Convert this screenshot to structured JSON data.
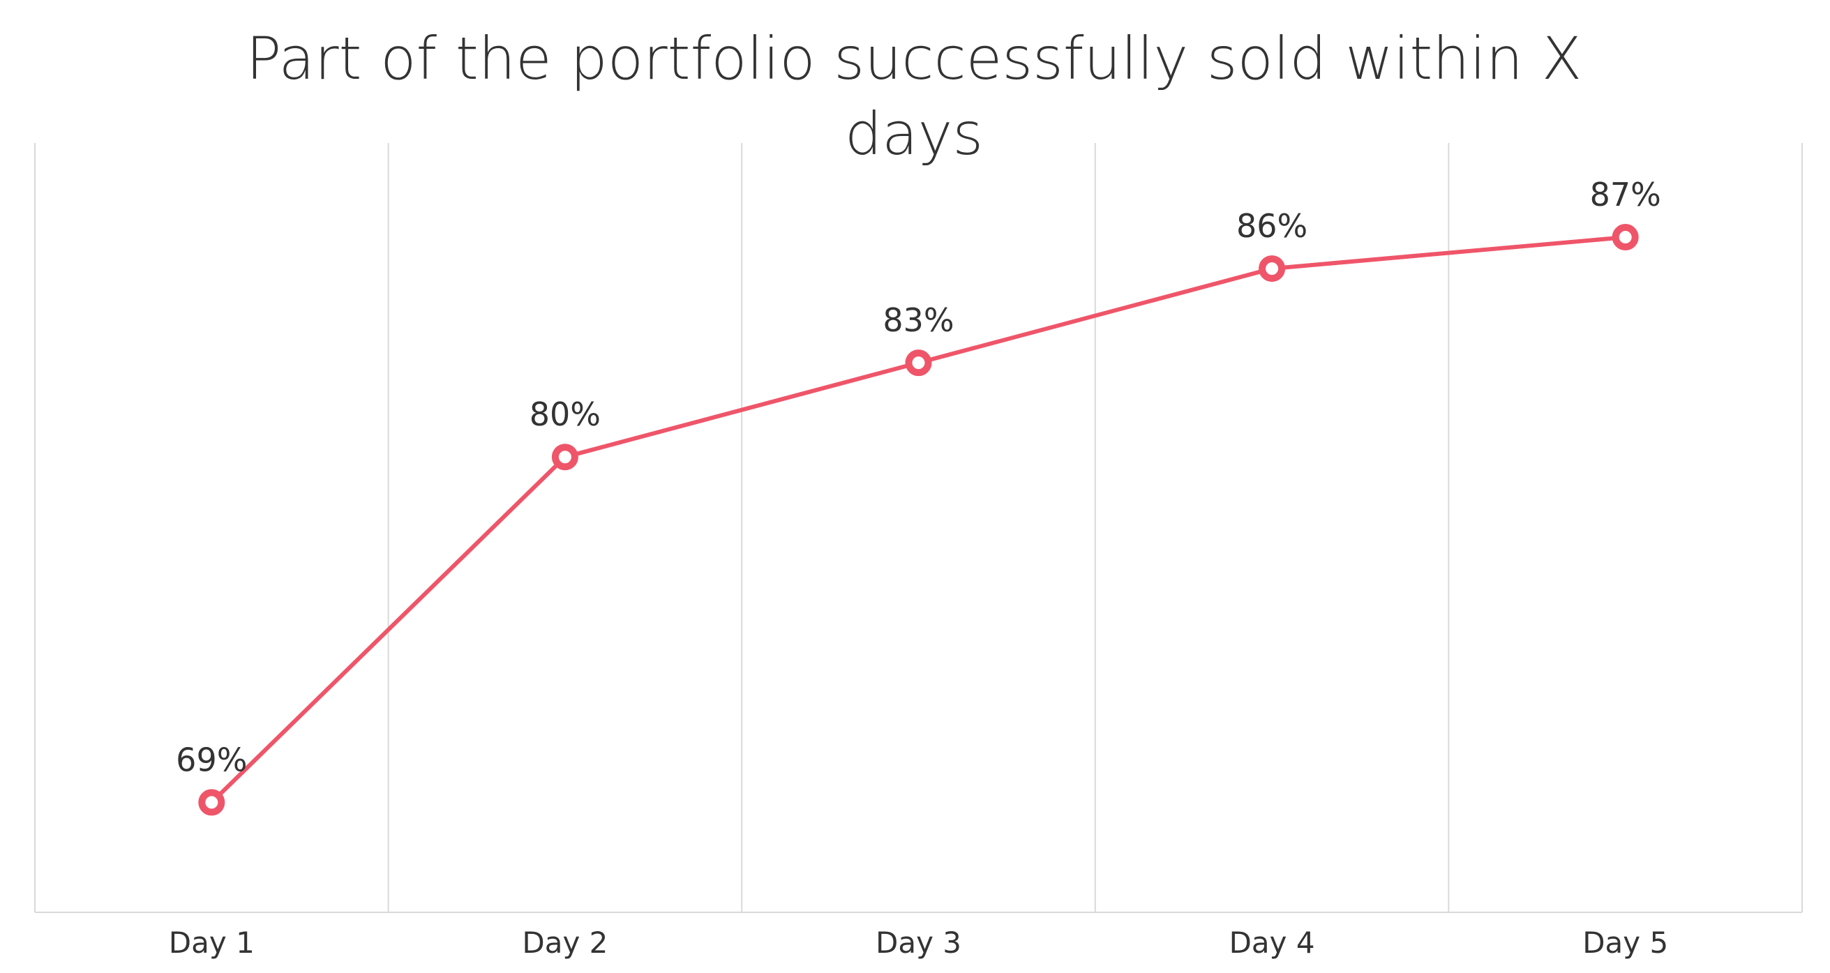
{
  "chart_data": {
    "type": "line",
    "title": "Part of the portfolio successfully sold within X days",
    "categories": [
      "Day 1",
      "Day 2",
      "Day 3",
      "Day 4",
      "Day 5"
    ],
    "series": [
      {
        "color": "#ef5569",
        "values": [
          69,
          80,
          83,
          86,
          87
        ],
        "value_labels": [
          "69%",
          "80%",
          "83%",
          "86%",
          "87%"
        ]
      }
    ],
    "ylim": [
      65.5,
      90
    ],
    "grid": true
  }
}
